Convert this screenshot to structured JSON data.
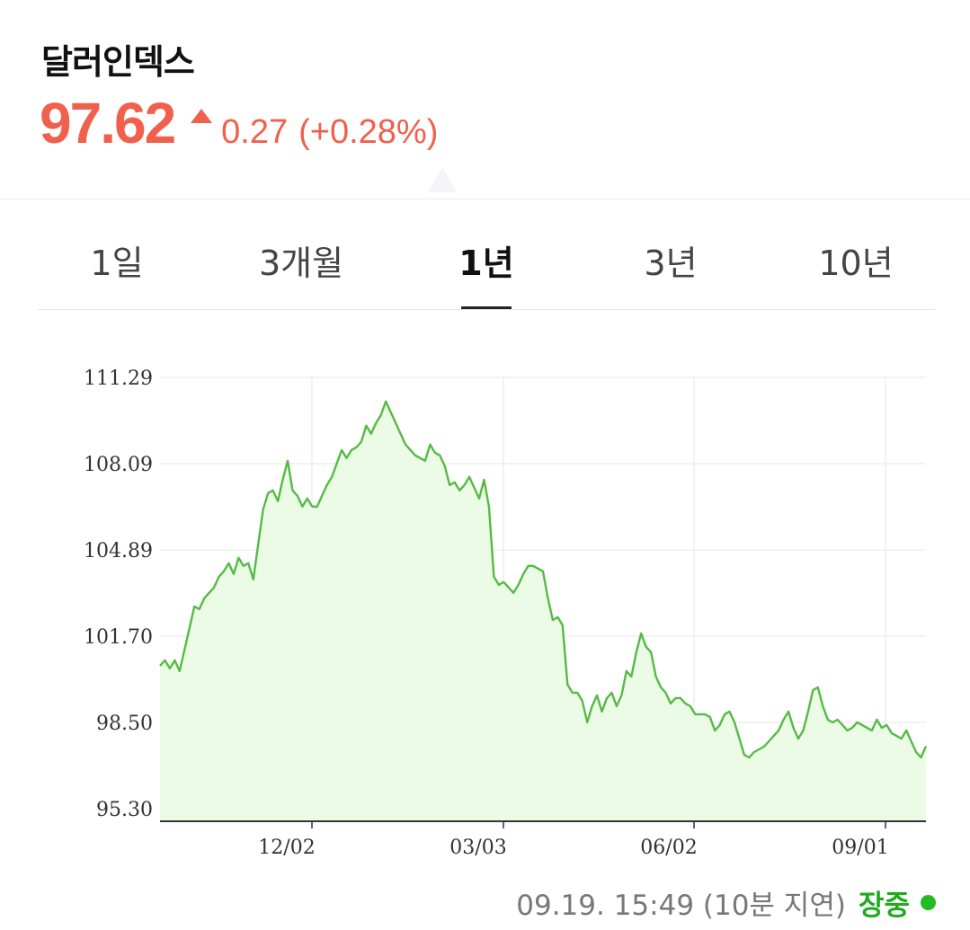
{
  "header": {
    "title": "달러인덱스",
    "price": "97.62",
    "change": "0.27",
    "change_pct": "(+0.28%)",
    "color_up": "#f0604d",
    "direction_icon": "triangle-up-icon"
  },
  "tabs": [
    {
      "label": "1일",
      "active": false
    },
    {
      "label": "3개월",
      "active": false
    },
    {
      "label": "1년",
      "active": true
    },
    {
      "label": "3년",
      "active": false
    },
    {
      "label": "10년",
      "active": false
    }
  ],
  "chart_data": {
    "type": "area",
    "title": "",
    "xlabel": "",
    "ylabel": "",
    "ylim": [
      95.3,
      111.29
    ],
    "y_ticks": [
      "111.29",
      "108.09",
      "104.89",
      "101.70",
      "98.50",
      "95.30"
    ],
    "x_ticks": [
      "12/02",
      "03/03",
      "06/02",
      "09/01"
    ],
    "grid": true,
    "line_color": "#55bb44",
    "fill_color": "#ecfbe6",
    "series": [
      {
        "values": [
          100.6,
          100.8,
          100.5,
          100.8,
          100.4,
          101.2,
          102.0,
          102.8,
          102.7,
          103.1,
          103.3,
          103.5,
          103.9,
          104.1,
          104.4,
          104.0,
          104.6,
          104.3,
          104.4,
          103.8,
          105.1,
          106.4,
          107.0,
          107.1,
          106.7,
          107.5,
          108.2,
          107.1,
          106.9,
          106.5,
          106.8,
          106.5,
          106.5,
          106.9,
          107.3,
          107.6,
          108.1,
          108.6,
          108.3,
          108.6,
          108.7,
          108.9,
          109.5,
          109.2,
          109.6,
          109.9,
          110.4,
          110.0,
          109.6,
          109.2,
          108.8,
          108.6,
          108.4,
          108.3,
          108.2,
          108.8,
          108.5,
          108.4,
          108.0,
          107.3,
          107.4,
          107.1,
          107.3,
          107.6,
          107.2,
          106.8,
          107.5,
          106.5,
          103.9,
          103.6,
          103.7,
          103.5,
          103.3,
          103.6,
          104.0,
          104.3,
          104.3,
          104.2,
          104.1,
          103.1,
          102.3,
          102.4,
          102.1,
          99.9,
          99.6,
          99.6,
          99.3,
          98.5,
          99.1,
          99.5,
          98.9,
          99.4,
          99.6,
          99.1,
          99.5,
          100.4,
          100.2,
          101.1,
          101.8,
          101.3,
          101.1,
          100.2,
          99.8,
          99.6,
          99.2,
          99.4,
          99.4,
          99.2,
          99.1,
          98.8,
          98.8,
          98.8,
          98.7,
          98.2,
          98.4,
          98.8,
          98.9,
          98.5,
          97.9,
          97.3,
          97.2,
          97.4,
          97.5,
          97.6,
          97.8,
          98.0,
          98.2,
          98.6,
          98.9,
          98.3,
          97.9,
          98.2,
          98.9,
          99.7,
          99.8,
          99.1,
          98.6,
          98.5,
          98.6,
          98.4,
          98.2,
          98.3,
          98.5,
          98.4,
          98.3,
          98.2,
          98.6,
          98.3,
          98.4,
          98.1,
          98.0,
          97.9,
          98.2,
          97.8,
          97.4,
          97.2,
          97.62
        ]
      }
    ]
  },
  "status": {
    "timestamp": "09.19. 15:49 (10분 지연)",
    "state": "장중",
    "state_color": "#1faa1f",
    "indicator_icon": "live-dot-icon"
  }
}
